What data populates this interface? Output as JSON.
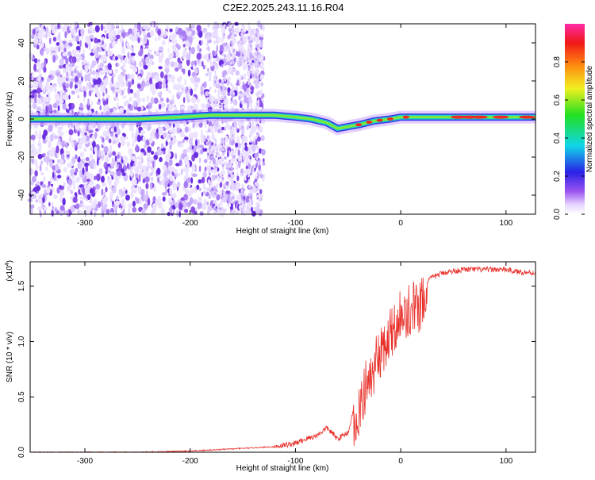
{
  "title": "C2E2.2025.243.11.16.R04",
  "colors": {
    "signal": "#e8302a",
    "noise": "#7a3cf0",
    "axis": "#000000"
  },
  "chart_data": [
    {
      "type": "heatmap",
      "name": "spectrogram",
      "xlabel": "Height of straight line (km)",
      "ylabel": "Frequency (Hz)",
      "xlim": [
        -352,
        128
      ],
      "ylim": [
        -50,
        50
      ],
      "xticks": [
        -300,
        -200,
        -100,
        0,
        100
      ],
      "yticks": [
        -40,
        -20,
        0,
        20,
        40
      ],
      "colorbar": {
        "label": "Normalized spectral amplitude",
        "range": [
          0,
          1
        ],
        "ticks": [
          "0.0",
          "0.2",
          "0.4",
          "0.6",
          "0.8"
        ]
      },
      "ridge": {
        "x": [
          -352,
          -300,
          -250,
          -210,
          -180,
          -150,
          -120,
          -100,
          -85,
          -70,
          -60,
          -50,
          -40,
          -25,
          -10,
          0,
          30,
          60,
          90,
          128
        ],
        "y": [
          0,
          0,
          0,
          1,
          2,
          2,
          2,
          1,
          0,
          -2,
          -5,
          -4,
          -3,
          -1,
          0,
          1,
          1,
          1,
          1,
          1
        ]
      }
    },
    {
      "type": "line",
      "name": "snr",
      "xlabel": "Height of straight line (km)",
      "ylabel": "SNR (10 * v/v)",
      "multiplier": "(x10",
      "exponent": "4",
      "multiplier_close": ")",
      "xlim": [
        -352,
        128
      ],
      "ylim": [
        0,
        1.72
      ],
      "xticks": [
        -300,
        -200,
        -100,
        0,
        100
      ],
      "yticks": [
        "0.0",
        "0.5",
        "1.0",
        "1.5"
      ],
      "series": [
        {
          "name": "SNR",
          "x": [
            -352,
            -300,
            -250,
            -200,
            -180,
            -160,
            -140,
            -120,
            -100,
            -90,
            -80,
            -70,
            -60,
            -50,
            -40,
            -30,
            -20,
            -10,
            0,
            10,
            20,
            30,
            40,
            60,
            80,
            100,
            110,
            128
          ],
          "y": [
            0.0,
            0.0,
            0.0,
            0.01,
            0.02,
            0.03,
            0.04,
            0.05,
            0.08,
            0.12,
            0.15,
            0.22,
            0.12,
            0.18,
            0.55,
            0.85,
            1.05,
            1.25,
            1.4,
            1.45,
            1.5,
            1.58,
            1.62,
            1.65,
            1.65,
            1.65,
            1.63,
            1.62
          ]
        }
      ]
    }
  ]
}
